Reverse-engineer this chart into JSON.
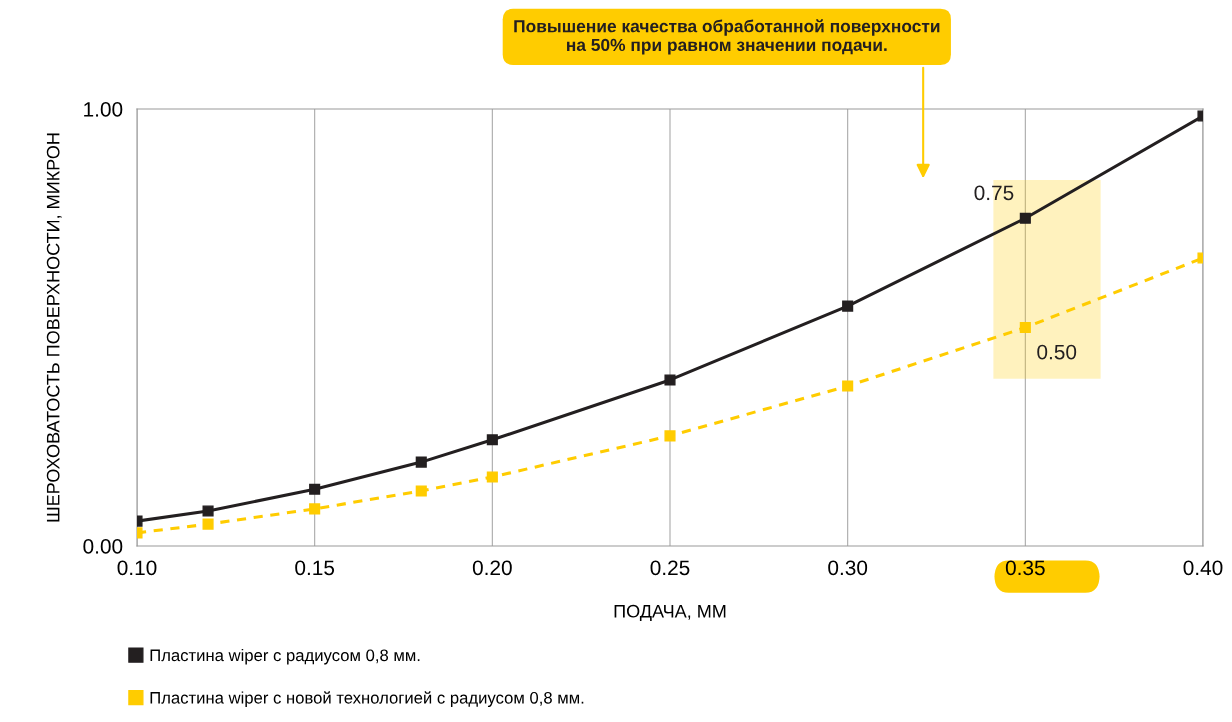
{
  "chart_data": {
    "type": "line",
    "xlabel": "ПОДАЧА, ММ",
    "ylabel": "ШЕРОХОВАТОСТЬ ПОВЕРХНОСТИ, МИКРОН",
    "x": [
      0.1,
      0.12,
      0.15,
      0.18,
      0.2,
      0.25,
      0.3,
      0.35,
      0.4
    ],
    "series": [
      {
        "name": "Пластина wiper с радиусом 0,8 мм.",
        "color": "#231f20",
        "line_style": "solid",
        "values": [
          0.057,
          0.08,
          0.13,
          0.192,
          0.243,
          0.38,
          0.549,
          0.75,
          0.984
        ],
        "value_labels": [
          null,
          null,
          null,
          null,
          null,
          null,
          null,
          "0.75",
          null
        ]
      },
      {
        "name": "Пластина wiper с новой технологией с радиусом 0,8 мм.",
        "color": "#ffcc00",
        "line_style": "dashed",
        "values": [
          0.03,
          0.05,
          0.085,
          0.126,
          0.158,
          0.252,
          0.366,
          0.5,
          0.659
        ],
        "value_labels": [
          null,
          null,
          null,
          null,
          null,
          null,
          null,
          "0.50",
          null
        ]
      }
    ],
    "xlim": [
      0.1,
      0.4
    ],
    "xticks": [
      {
        "value": 0.1,
        "label": "0.10"
      },
      0.15,
      {
        "value": 0.2,
        "label": "0.20"
      },
      0.25,
      {
        "value": 0.3,
        "label": "0.30"
      },
      0.35,
      {
        "value": 0.4,
        "label": "0.40"
      }
    ],
    "ylim": [
      0,
      1
    ],
    "yticks": [
      {
        "value": 0,
        "label": "0.00"
      },
      {
        "value": 1,
        "label": "1.00"
      }
    ],
    "grid": "x",
    "marker": "square",
    "legend": "bottom",
    "annotations": [
      "Повышение качества обработанной поверхности\nна 50% при равном значении подачи."
    ]
  }
}
